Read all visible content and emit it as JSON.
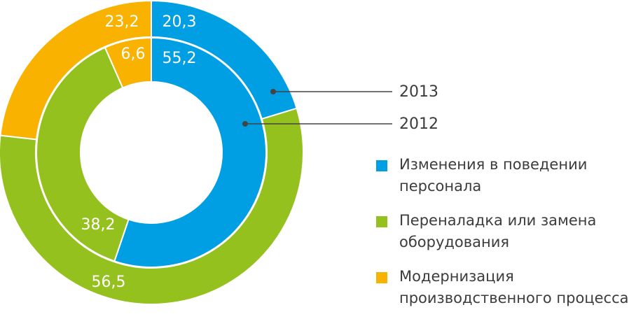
{
  "chart_data": {
    "type": "donut",
    "categories": [
      "Изменения в поведении персонала",
      "Переналадка или замена оборудования",
      "Модернизация производственного процесса"
    ],
    "colors": [
      "#009fe3",
      "#95c11f",
      "#f9b200"
    ],
    "series": [
      {
        "name": "2013",
        "values": [
          20.3,
          56.5,
          23.2
        ],
        "value_labels": [
          "20,3",
          "56,5",
          "23,2"
        ]
      },
      {
        "name": "2012",
        "values": [
          55.2,
          38.2,
          6.6
        ],
        "value_labels": [
          "55,2",
          "38,2",
          "6,6"
        ]
      }
    ]
  }
}
